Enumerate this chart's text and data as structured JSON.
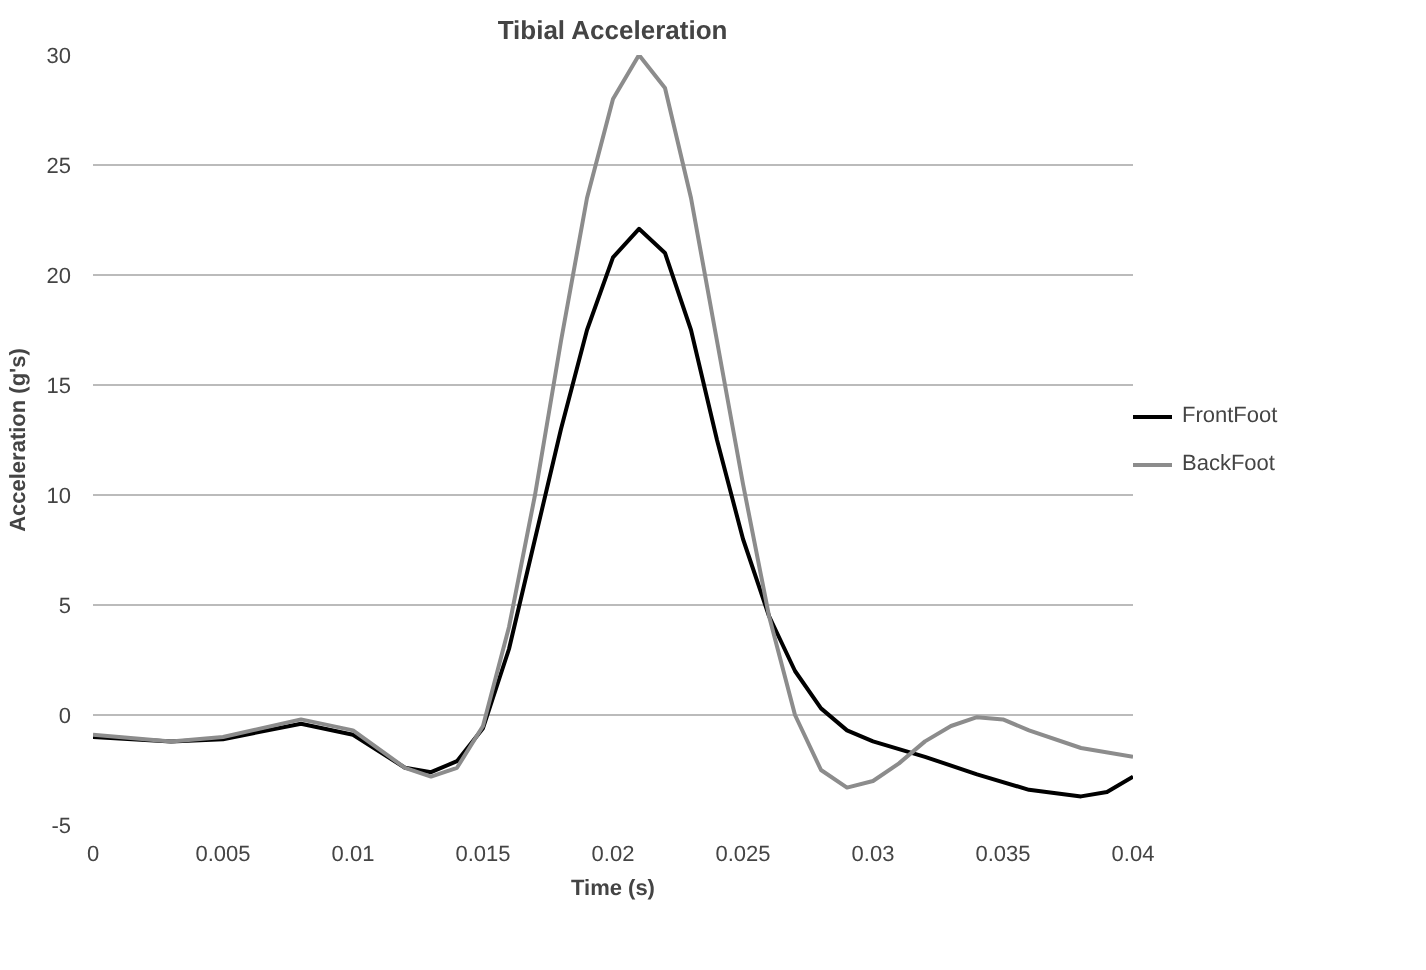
{
  "chart_data": {
    "type": "line",
    "title": "Tibial Acceleration",
    "xlabel": "Time (s)",
    "ylabel": "Acceleration (g's)",
    "xlim": [
      0,
      0.04
    ],
    "xticks": [
      0,
      0.005,
      0.01,
      0.015,
      0.02,
      0.025,
      0.03,
      0.035,
      0.04
    ],
    "ylim": [
      -5,
      30
    ],
    "yticks": [
      -5,
      0,
      5,
      10,
      15,
      20,
      25,
      30
    ],
    "grid": "y",
    "legend": "right",
    "marker": "none",
    "line_style": "solid",
    "series": [
      {
        "name": "FrontFoot",
        "color": "#000000",
        "x": [
          0,
          0.003,
          0.005,
          0.008,
          0.01,
          0.012,
          0.013,
          0.014,
          0.015,
          0.016,
          0.017,
          0.018,
          0.019,
          0.02,
          0.021,
          0.022,
          0.023,
          0.024,
          0.025,
          0.026,
          0.027,
          0.028,
          0.029,
          0.03,
          0.032,
          0.034,
          0.036,
          0.038,
          0.039,
          0.04
        ],
        "values": [
          -1.0,
          -1.2,
          -1.1,
          -0.4,
          -0.9,
          -2.4,
          -2.6,
          -2.1,
          -0.6,
          3,
          8,
          13,
          17.5,
          20.8,
          22.1,
          21,
          17.5,
          12.5,
          8,
          4.5,
          2,
          0.3,
          -0.7,
          -1.2,
          -1.9,
          -2.7,
          -3.4,
          -3.7,
          -3.5,
          -2.8
        ]
      },
      {
        "name": "BackFoot",
        "color": "#8c8c8c",
        "x": [
          0,
          0.003,
          0.005,
          0.008,
          0.01,
          0.012,
          0.013,
          0.014,
          0.015,
          0.016,
          0.017,
          0.018,
          0.019,
          0.02,
          0.021,
          0.022,
          0.023,
          0.024,
          0.025,
          0.026,
          0.027,
          0.028,
          0.029,
          0.03,
          0.031,
          0.032,
          0.033,
          0.034,
          0.035,
          0.036,
          0.038,
          0.04
        ],
        "values": [
          -0.9,
          -1.2,
          -1.0,
          -0.2,
          -0.7,
          -2.4,
          -2.8,
          -2.4,
          -0.5,
          4,
          10,
          17,
          23.5,
          28,
          30,
          28.5,
          23.5,
          17,
          10.5,
          4.5,
          0,
          -2.5,
          -3.3,
          -3.0,
          -2.2,
          -1.2,
          -0.5,
          -0.1,
          -0.2,
          -0.7,
          -1.5,
          -1.9
        ]
      }
    ]
  }
}
